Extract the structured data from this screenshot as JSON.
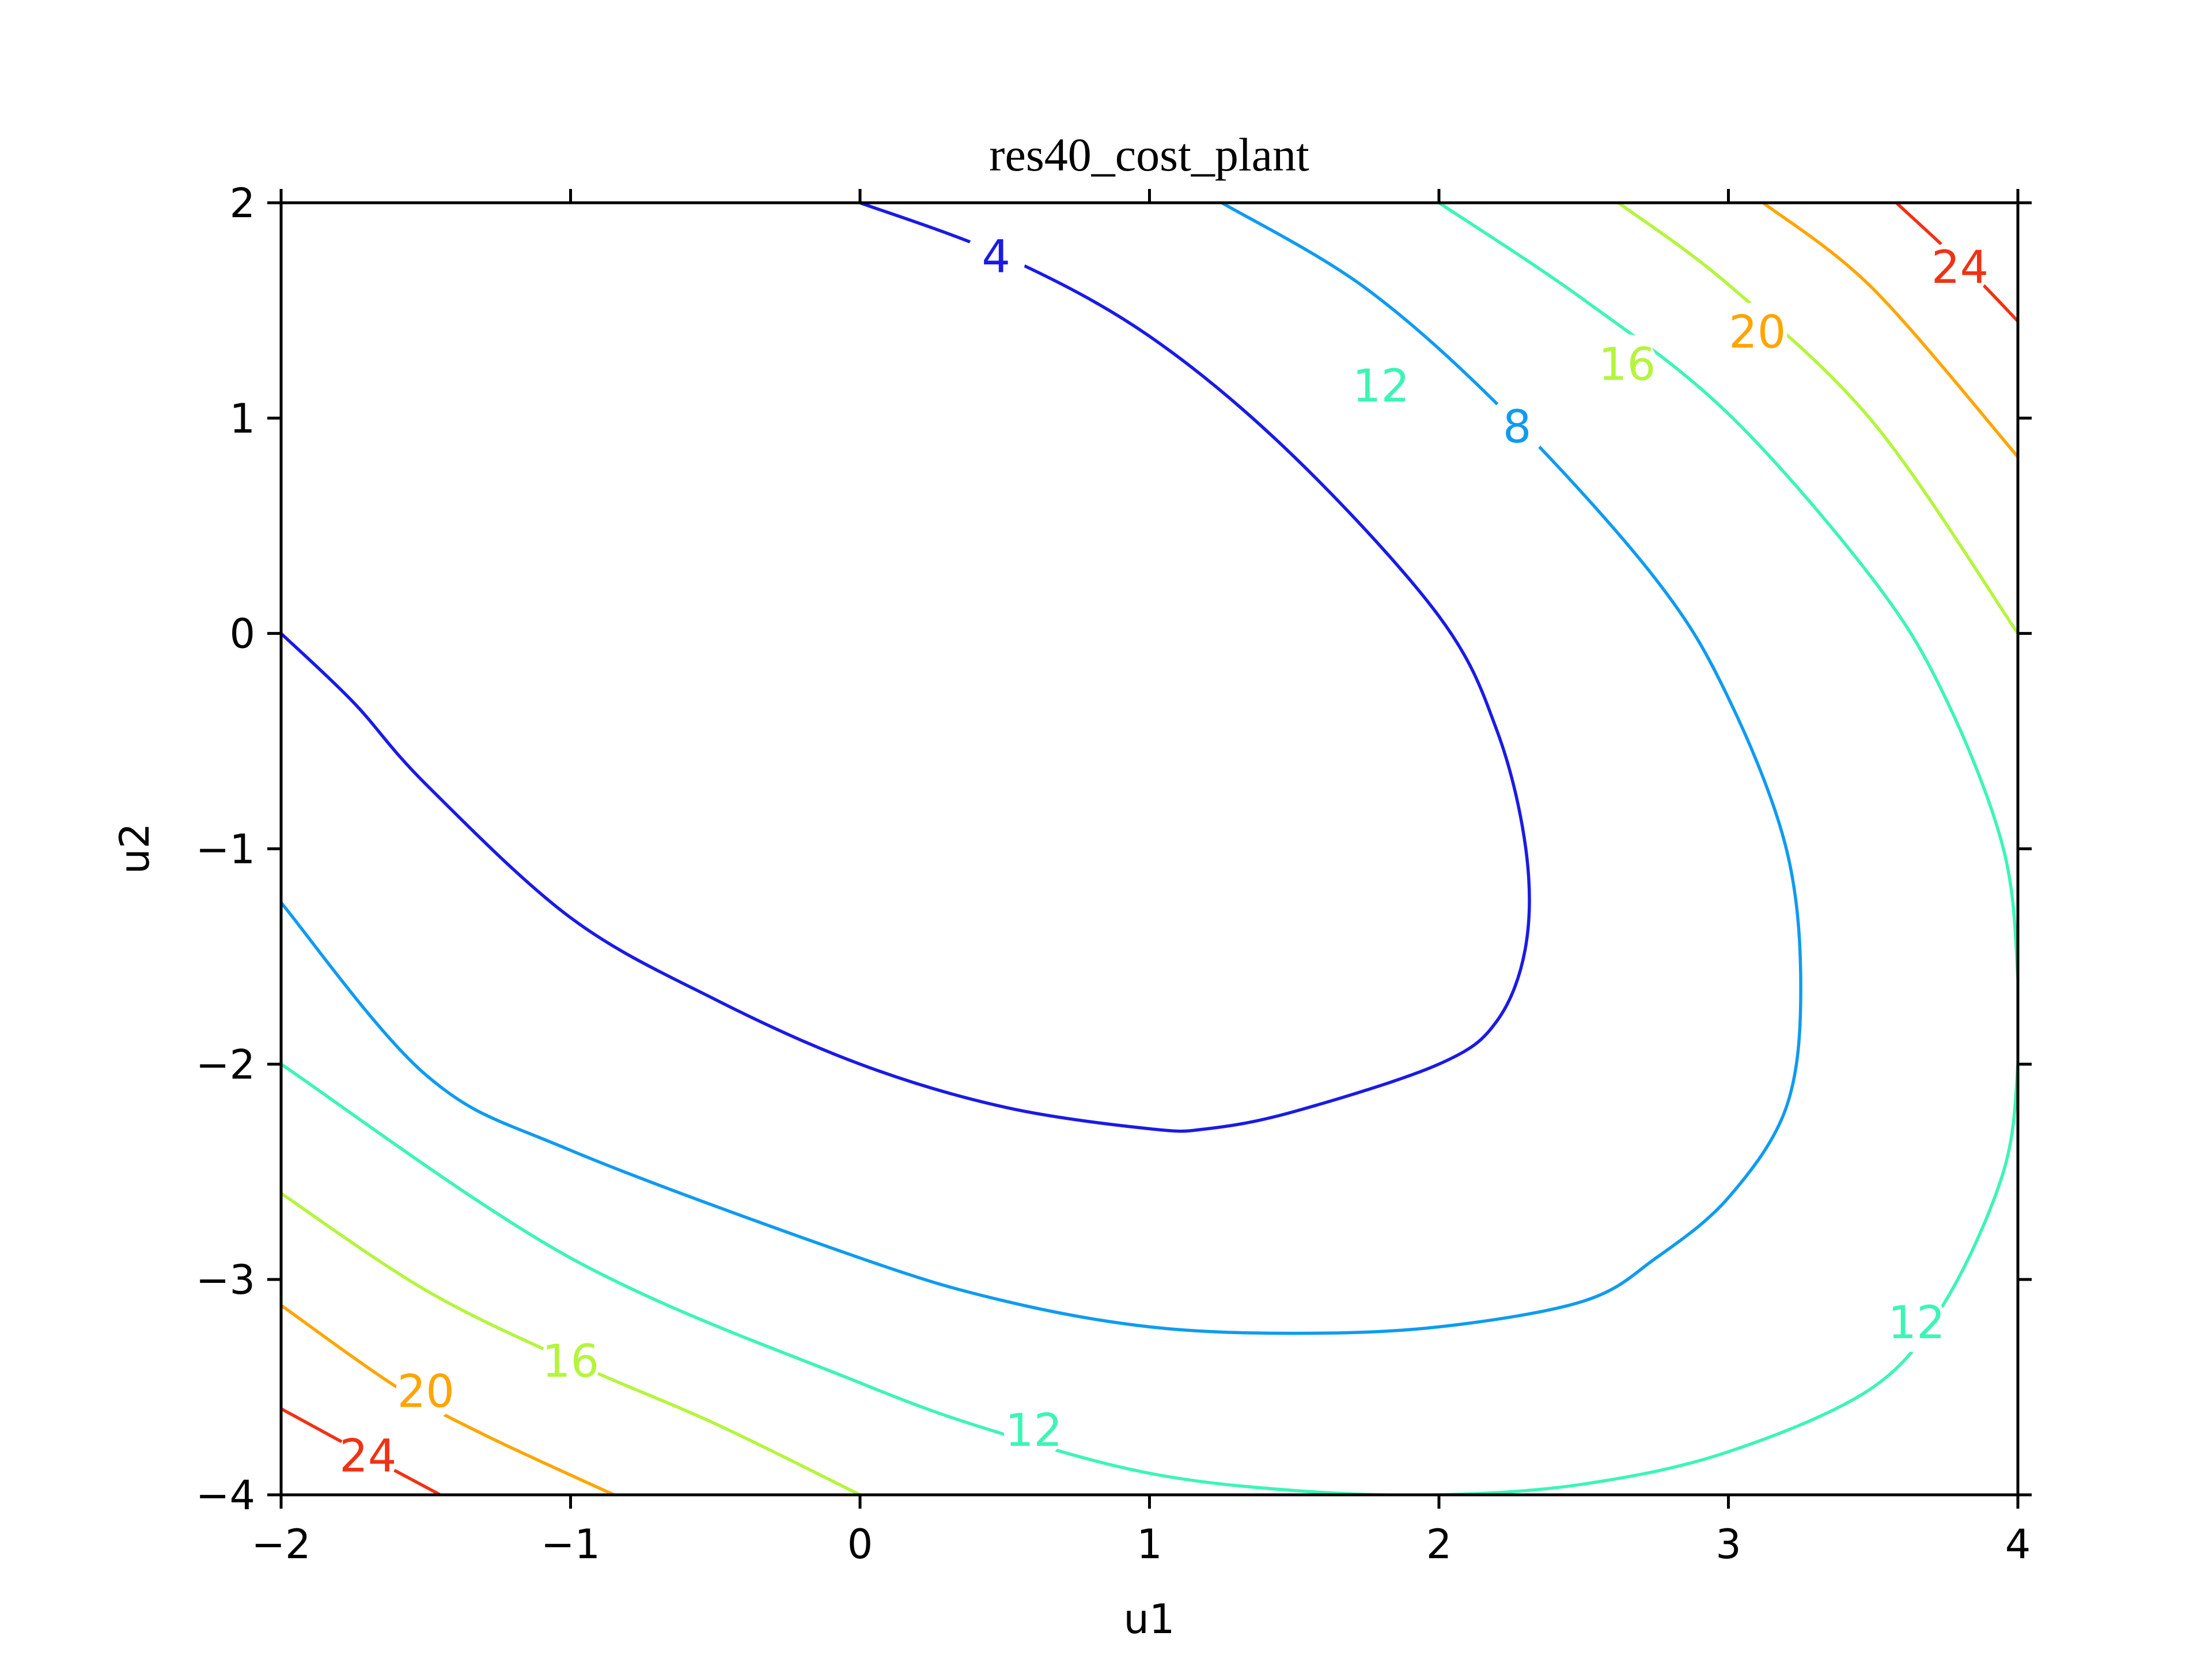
{
  "chart_data": {
    "type": "contour",
    "title": "res40_cost_plant",
    "xlabel": "u1",
    "ylabel": "u2",
    "xlim": [
      -2,
      4
    ],
    "ylim": [
      -4,
      2
    ],
    "xticks": [
      -2,
      -1,
      0,
      1,
      2,
      3,
      4
    ],
    "xtick_labels": [
      "−2",
      "−1",
      "0",
      "1",
      "2",
      "3",
      "4"
    ],
    "yticks": [
      -4,
      -3,
      -2,
      -1,
      0,
      1,
      2
    ],
    "ytick_labels": [
      "−4",
      "−3",
      "−2",
      "−1",
      "0",
      "1",
      "2"
    ],
    "grid": false,
    "colormap": "jet",
    "levels": [
      {
        "level": 4,
        "color": "#1a1ae6",
        "label": "4",
        "label_positions": [
          [
            0.47,
            1.75
          ]
        ],
        "segments": [
          [
            [
              0.0,
              2.0
            ],
            [
              0.5,
              1.75
            ],
            [
              1.0,
              1.38
            ],
            [
              1.5,
              0.82
            ],
            [
              2.0,
              0.08
            ],
            [
              2.2,
              -0.45
            ],
            [
              2.3,
              -1.0
            ],
            [
              2.3,
              -1.45
            ],
            [
              2.2,
              -1.8
            ],
            [
              2.0,
              -2.0
            ],
            [
              1.5,
              -2.22
            ],
            [
              1.2,
              -2.3
            ],
            [
              1.0,
              -2.3
            ],
            [
              0.5,
              -2.2
            ],
            [
              0.0,
              -2.0
            ],
            [
              -0.5,
              -1.7
            ],
            [
              -1.0,
              -1.32
            ],
            [
              -1.5,
              -0.7
            ],
            [
              -1.75,
              -0.32
            ],
            [
              -2.0,
              0.0
            ]
          ]
        ]
      },
      {
        "level": 8,
        "color": "#0f9bf0",
        "label": "8",
        "label_positions": [
          [
            2.27,
            0.96
          ]
        ],
        "segments": [
          [
            [
              1.25,
              2.0
            ],
            [
              1.75,
              1.6
            ],
            [
              2.25,
              1.0
            ],
            [
              2.75,
              0.25
            ],
            [
              3.0,
              -0.3
            ],
            [
              3.2,
              -1.0
            ],
            [
              3.25,
              -1.65
            ],
            [
              3.2,
              -2.2
            ],
            [
              3.0,
              -2.62
            ],
            [
              2.75,
              -2.9
            ],
            [
              2.5,
              -3.1
            ],
            [
              2.0,
              -3.22
            ],
            [
              1.5,
              -3.25
            ],
            [
              1.0,
              -3.22
            ],
            [
              0.5,
              -3.1
            ],
            [
              0.0,
              -2.9
            ],
            [
              -1.0,
              -2.4
            ],
            [
              -1.5,
              -2.05
            ],
            [
              -2.0,
              -1.25
            ]
          ]
        ]
      },
      {
        "level": 12,
        "color": "#3cf5b4",
        "label": "12",
        "label_positions": [
          [
            1.8,
            1.15
          ],
          [
            0.6,
            -3.7
          ],
          [
            3.65,
            -3.2
          ]
        ],
        "segments": [
          [
            [
              2.0,
              2.0
            ],
            [
              2.5,
              1.55
            ],
            [
              3.0,
              1.02
            ],
            [
              3.5,
              0.25
            ],
            [
              3.75,
              -0.3
            ],
            [
              3.95,
              -1.0
            ],
            [
              4.0,
              -1.6
            ],
            [
              4.0,
              -2.0
            ],
            [
              3.95,
              -2.5
            ],
            [
              3.75,
              -3.1
            ],
            [
              3.5,
              -3.5
            ],
            [
              3.0,
              -3.8
            ],
            [
              2.5,
              -3.95
            ],
            [
              2.0,
              -4.0
            ],
            [
              1.5,
              -3.98
            ],
            [
              1.0,
              -3.9
            ],
            [
              0.5,
              -3.72
            ],
            [
              0.0,
              -3.48
            ],
            [
              -1.0,
              -2.9
            ],
            [
              -2.0,
              -2.0
            ]
          ]
        ]
      },
      {
        "level": 16,
        "color": "#b4f53c",
        "label": "16",
        "label_positions": [
          [
            2.65,
            1.25
          ],
          [
            -1.0,
            -3.38
          ]
        ],
        "segments": [
          [
            [
              2.62,
              2.0
            ],
            [
              3.0,
              1.62
            ],
            [
              3.5,
              0.98
            ],
            [
              4.0,
              0.0
            ]
          ],
          [
            [
              0.0,
              -4.0
            ],
            [
              -0.5,
              -3.67
            ],
            [
              -1.0,
              -3.38
            ],
            [
              -1.5,
              -3.05
            ],
            [
              -2.0,
              -2.6
            ]
          ]
        ]
      },
      {
        "level": 20,
        "color": "#ffa500",
        "label": "20",
        "label_positions": [
          [
            3.1,
            1.4
          ],
          [
            -1.5,
            -3.52
          ]
        ],
        "segments": [
          [
            [
              3.12,
              2.0
            ],
            [
              3.5,
              1.6
            ],
            [
              4.0,
              0.82
            ]
          ],
          [
            [
              -0.85,
              -4.0
            ],
            [
              -1.3,
              -3.72
            ],
            [
              -1.6,
              -3.5
            ],
            [
              -2.0,
              -3.12
            ]
          ]
        ]
      },
      {
        "level": 24,
        "color": "#f03214",
        "label": "24",
        "label_positions": [
          [
            3.8,
            1.7
          ],
          [
            -1.7,
            -3.82
          ]
        ],
        "segments": [
          [
            [
              3.58,
              2.0
            ],
            [
              3.82,
              1.7
            ],
            [
              4.0,
              1.45
            ]
          ],
          [
            [
              -1.45,
              -4.0
            ],
            [
              -1.7,
              -3.82
            ],
            [
              -2.0,
              -3.6
            ]
          ]
        ]
      }
    ]
  }
}
